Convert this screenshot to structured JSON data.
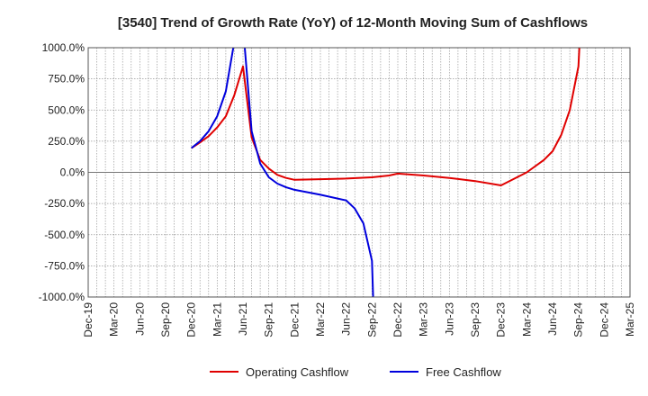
{
  "chart_data": {
    "type": "line",
    "title": "[3540]  Trend of Growth Rate (YoY) of 12-Month Moving Sum of Cashflows",
    "xlabel": "",
    "ylabel": "",
    "ylim": [
      -1000,
      1000
    ],
    "yticks": [
      1000,
      750,
      500,
      250,
      0,
      -250,
      -500,
      -750,
      -1000
    ],
    "ytick_labels": [
      "1000.0%",
      "750.0%",
      "500.0%",
      "250.0%",
      "0.0%",
      "-250.0%",
      "-500.0%",
      "-750.0%",
      "-1000.0%"
    ],
    "x_range": [
      "Dec-19",
      "Mar-25"
    ],
    "x_tick_labels": [
      "Dec-19",
      "Mar-20",
      "Jun-20",
      "Sep-20",
      "Dec-20",
      "Mar-21",
      "Jun-21",
      "Sep-21",
      "Dec-21",
      "Mar-22",
      "Jun-22",
      "Sep-22",
      "Dec-22",
      "Mar-23",
      "Jun-23",
      "Sep-23",
      "Dec-23",
      "Mar-24",
      "Jun-24",
      "Sep-24",
      "Dec-24",
      "Mar-25"
    ],
    "grid": true,
    "legend_position": "bottom",
    "series": [
      {
        "name": "Operating Cashflow",
        "color": "#e00000",
        "points": [
          [
            "Dec-20",
            195
          ],
          [
            "Jan-21",
            240
          ],
          [
            "Feb-21",
            290
          ],
          [
            "Mar-21",
            360
          ],
          [
            "Apr-21",
            450
          ],
          [
            "May-21",
            620
          ],
          [
            "Jun-21",
            850
          ],
          [
            "Jul-21",
            280
          ],
          [
            "Aug-21",
            100
          ],
          [
            "Sep-21",
            30
          ],
          [
            "Oct-21",
            -20
          ],
          [
            "Nov-21",
            -45
          ],
          [
            "Dec-21",
            -60
          ],
          [
            "Mar-22",
            -55
          ],
          [
            "Jun-22",
            -50
          ],
          [
            "Sep-22",
            -40
          ],
          [
            "Nov-22",
            -25
          ],
          [
            "Dec-22",
            -10
          ],
          [
            "Mar-23",
            -25
          ],
          [
            "Jun-23",
            -45
          ],
          [
            "Sep-23",
            -70
          ],
          [
            "Dec-23",
            -105
          ],
          [
            "Mar-24",
            0
          ],
          [
            "May-24",
            100
          ],
          [
            "Jun-24",
            170
          ],
          [
            "Jul-24",
            300
          ],
          [
            "Aug-24",
            500
          ],
          [
            "Sep-24",
            850
          ],
          [
            "Sep-24+",
            1050
          ]
        ]
      },
      {
        "name": "Free Cashflow",
        "color": "#0000dd",
        "points": [
          [
            "Dec-20",
            195
          ],
          [
            "Jan-21",
            250
          ],
          [
            "Feb-21",
            330
          ],
          [
            "Mar-21",
            450
          ],
          [
            "Apr-21",
            650
          ],
          [
            "May-21",
            1050
          ],
          [
            "Jun-21",
            1050
          ],
          [
            "Jun-21+",
            1050
          ],
          [
            "Jul-21",
            330
          ],
          [
            "Aug-21",
            70
          ],
          [
            "Sep-21",
            -40
          ],
          [
            "Oct-21",
            -90
          ],
          [
            "Nov-21",
            -120
          ],
          [
            "Dec-21",
            -140
          ],
          [
            "Mar-22",
            -180
          ],
          [
            "Jun-22",
            -225
          ],
          [
            "Jul-22",
            -290
          ],
          [
            "Aug-22",
            -410
          ],
          [
            "Sep-22",
            -710
          ],
          [
            "Sep-22+",
            -1050
          ]
        ]
      }
    ]
  }
}
